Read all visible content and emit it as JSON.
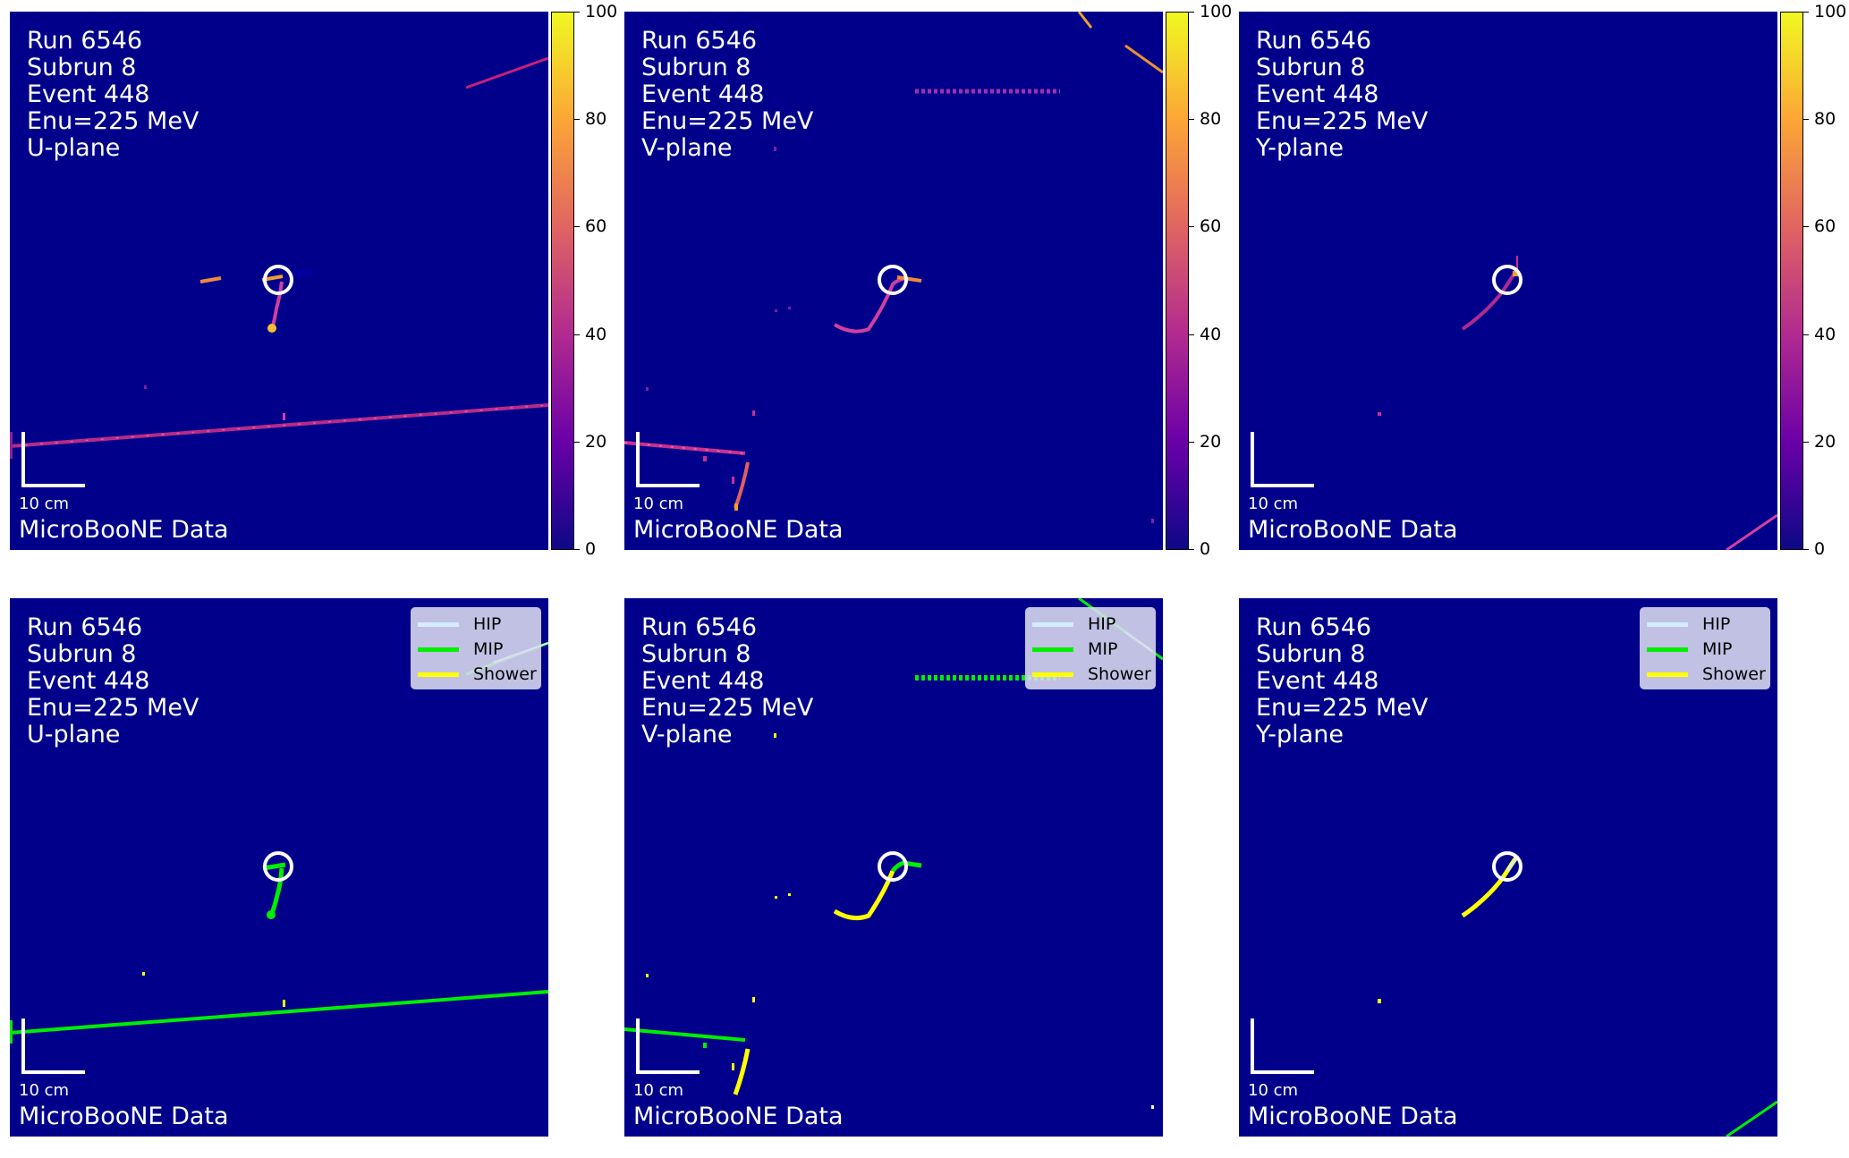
{
  "panels": [
    {
      "row": "top",
      "run": "Run 6546",
      "subrun": "Subrun 8",
      "event": "Event 448",
      "enu": "Enu=225 MeV",
      "plane": "U-plane",
      "scale_label": "10 cm",
      "credit": "MicroBooNE Data"
    },
    {
      "row": "top",
      "run": "Run 6546",
      "subrun": "Subrun 8",
      "event": "Event 448",
      "enu": "Enu=225 MeV",
      "plane": "V-plane",
      "scale_label": "10 cm",
      "credit": "MicroBooNE Data"
    },
    {
      "row": "top",
      "run": "Run 6546",
      "subrun": "Subrun 8",
      "event": "Event 448",
      "enu": "Enu=225 MeV",
      "plane": "Y-plane",
      "scale_label": "10 cm",
      "credit": "MicroBooNE Data"
    },
    {
      "row": "bottom",
      "run": "Run 6546",
      "subrun": "Subrun 8",
      "event": "Event 448",
      "enu": "Enu=225 MeV",
      "plane": "U-plane",
      "scale_label": "10 cm",
      "credit": "MicroBooNE Data"
    },
    {
      "row": "bottom",
      "run": "Run 6546",
      "subrun": "Subrun 8",
      "event": "Event 448",
      "enu": "Enu=225 MeV",
      "plane": "V-plane",
      "scale_label": "10 cm",
      "credit": "MicroBooNE Data"
    },
    {
      "row": "bottom",
      "run": "Run 6546",
      "subrun": "Subrun 8",
      "event": "Event 448",
      "enu": "Enu=225 MeV",
      "plane": "Y-plane",
      "scale_label": "10 cm",
      "credit": "MicroBooNE Data"
    }
  ],
  "legend": {
    "hip": "HIP",
    "mip": "MIP",
    "shower": "Shower",
    "hip_color": "#d6ecff",
    "mip_color": "#00ee00",
    "shower_color": "#ffff00"
  },
  "colorbar": {
    "ticks": [
      "100",
      "80",
      "60",
      "40",
      "20",
      "0"
    ],
    "colors": [
      "#0d0887",
      "#6a00a8",
      "#b12a90",
      "#e16462",
      "#fca636",
      "#f0f921"
    ]
  },
  "colors": {
    "background": "#00008b",
    "overlay": "#ffffff"
  }
}
